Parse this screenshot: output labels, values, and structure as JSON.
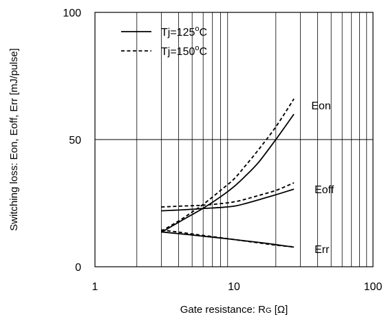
{
  "chart_data": {
    "type": "line",
    "xlabel": "Gate resistance: RG [Ω]",
    "xlabel_parts": {
      "before": "Gate resistance: R",
      "sub": "G",
      "after": " [Ω]"
    },
    "ylabel": "Switching loss: Eon, Eoff, Err [mJ/pulse]",
    "xscale": "log",
    "xlim": [
      1,
      100
    ],
    "ylim": [
      0,
      100
    ],
    "xticks": [
      "1",
      "10",
      "100"
    ],
    "yticks": [
      "0",
      "50",
      "100"
    ],
    "grid": "vertical minor lines on log x-axis, horizontal line at 50",
    "legend": {
      "placement": "top-left",
      "entries": [
        {
          "label": "Tj=125°C",
          "parts": {
            "before": "Tj=125",
            "sup": "o",
            "after": "C"
          },
          "style": "solid"
        },
        {
          "label": "Tj=150°C",
          "parts": {
            "before": "Tj=150",
            "sup": "o",
            "after": "C"
          },
          "style": "dashed"
        }
      ]
    },
    "curve_labels": [
      {
        "text": "Eon",
        "series_group": "Eon",
        "at": [
          36,
          63.5
        ]
      },
      {
        "text": "Eoff",
        "series_group": "Eoff",
        "at": [
          38,
          30.5
        ]
      },
      {
        "text": "Err",
        "series_group": "Err",
        "at": [
          38,
          7
        ]
      }
    ],
    "series": [
      {
        "group": "Eon",
        "style": "solid",
        "x": [
          3,
          4,
          5,
          6,
          8,
          10,
          12,
          15,
          20,
          27
        ],
        "y": [
          13.5,
          17.5,
          20.5,
          23,
          27.5,
          31.5,
          35.5,
          41,
          50,
          60
        ]
      },
      {
        "group": "Eon",
        "style": "dashed",
        "x": [
          3,
          4,
          5,
          6,
          8,
          10,
          12,
          15,
          20,
          27
        ],
        "y": [
          14,
          18,
          21.5,
          24.5,
          30,
          34.5,
          39.5,
          46,
          55,
          66
        ]
      },
      {
        "group": "Eoff",
        "style": "solid",
        "x": [
          3,
          4,
          5,
          6,
          8,
          10,
          12,
          15,
          20,
          27
        ],
        "y": [
          22,
          22.3,
          22.6,
          22.9,
          23.3,
          23.8,
          24.8,
          26.3,
          28.3,
          30.5
        ]
      },
      {
        "group": "Eoff",
        "style": "dashed",
        "x": [
          3,
          4,
          5,
          6,
          8,
          10,
          12,
          15,
          20,
          27
        ],
        "y": [
          23.5,
          23.8,
          24,
          24.2,
          24.8,
          25.5,
          26.5,
          28,
          30,
          33
        ]
      },
      {
        "group": "Err",
        "style": "solid",
        "x": [
          3,
          4,
          5,
          6,
          8,
          10,
          12,
          15,
          20,
          27
        ],
        "y": [
          13.7,
          13,
          12.5,
          12,
          11.3,
          10.7,
          10.2,
          9.6,
          8.7,
          7.7
        ]
      },
      {
        "group": "Err",
        "style": "dashed",
        "x": [
          3,
          4,
          5,
          6,
          8,
          10,
          12,
          15,
          20,
          27
        ],
        "y": [
          14.5,
          13.6,
          12.9,
          12.3,
          11.4,
          10.7,
          10.1,
          9.4,
          8.5,
          7.8
        ]
      }
    ]
  }
}
